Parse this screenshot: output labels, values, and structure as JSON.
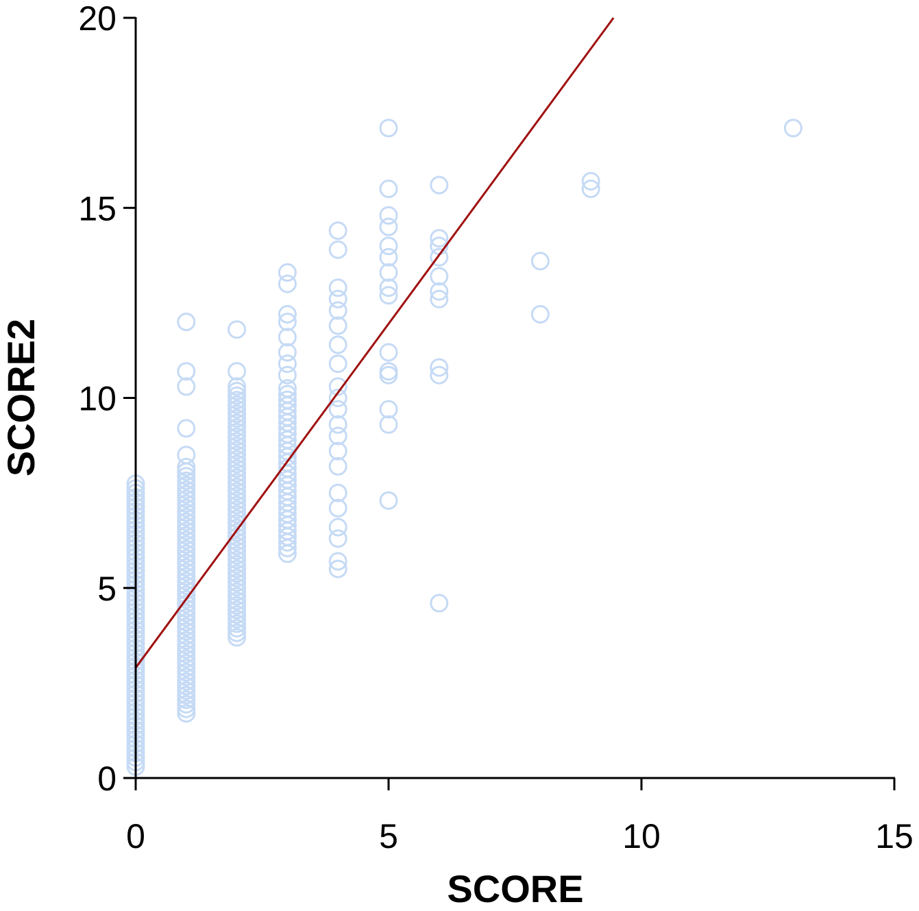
{
  "chart_data": {
    "type": "scatter",
    "title": "",
    "xlabel": "SCORE",
    "ylabel": "SCORE2",
    "xlim": [
      0,
      15
    ],
    "ylim": [
      0,
      20
    ],
    "x_ticks": [
      "0",
      "5",
      "10",
      "15"
    ],
    "y_ticks": [
      "0",
      "5",
      "10",
      "15",
      "20"
    ],
    "grid": false,
    "legend": "none",
    "colors": {
      "points": "#c5daf5",
      "fit_line": "#a01010",
      "axis": "#000000"
    },
    "fit_line": {
      "intercept": 2.9,
      "slope": 1.81
    },
    "point_columns": [
      {
        "x": 0,
        "ymin": 0.3,
        "ymax": 7.8,
        "step": 0.12
      },
      {
        "x": 1,
        "ymin": 1.7,
        "ymax": 8.2,
        "step": 0.12
      },
      {
        "x": 2,
        "ymin": 3.7,
        "ymax": 10.3,
        "step": 0.12
      },
      {
        "x": 3,
        "ymin": 5.9,
        "ymax": 10.3,
        "step": 0.15
      }
    ],
    "points": [
      [
        1,
        12.0
      ],
      [
        1,
        10.7
      ],
      [
        1,
        10.3
      ],
      [
        1,
        9.2
      ],
      [
        1,
        8.5
      ],
      [
        2,
        11.8
      ],
      [
        2,
        10.7
      ],
      [
        3,
        13.3
      ],
      [
        3,
        13.0
      ],
      [
        3,
        12.2
      ],
      [
        3,
        12.0
      ],
      [
        3,
        11.6
      ],
      [
        3,
        11.2
      ],
      [
        3,
        10.9
      ],
      [
        3,
        10.6
      ],
      [
        4,
        14.4
      ],
      [
        4,
        13.9
      ],
      [
        4,
        12.9
      ],
      [
        4,
        12.6
      ],
      [
        4,
        12.3
      ],
      [
        4,
        11.9
      ],
      [
        4,
        11.4
      ],
      [
        4,
        10.9
      ],
      [
        4,
        10.3
      ],
      [
        4,
        10.0
      ],
      [
        4,
        9.7
      ],
      [
        4,
        9.3
      ],
      [
        4,
        9.0
      ],
      [
        4,
        8.6
      ],
      [
        4,
        8.2
      ],
      [
        4,
        7.5
      ],
      [
        4,
        7.1
      ],
      [
        4,
        6.6
      ],
      [
        4,
        6.3
      ],
      [
        4,
        5.7
      ],
      [
        4,
        5.5
      ],
      [
        5,
        17.1
      ],
      [
        5,
        15.5
      ],
      [
        5,
        14.8
      ],
      [
        5,
        14.5
      ],
      [
        5,
        14.0
      ],
      [
        5,
        13.7
      ],
      [
        5,
        13.3
      ],
      [
        5,
        12.9
      ],
      [
        5,
        12.7
      ],
      [
        5,
        11.2
      ],
      [
        5,
        10.7
      ],
      [
        5,
        10.6
      ],
      [
        5,
        9.7
      ],
      [
        5,
        9.3
      ],
      [
        5,
        7.3
      ],
      [
        6,
        15.6
      ],
      [
        6,
        14.2
      ],
      [
        6,
        14.0
      ],
      [
        6,
        13.7
      ],
      [
        6,
        13.2
      ],
      [
        6,
        12.8
      ],
      [
        6,
        12.6
      ],
      [
        6,
        10.8
      ],
      [
        6,
        10.6
      ],
      [
        6,
        4.6
      ],
      [
        8,
        13.6
      ],
      [
        8,
        12.2
      ],
      [
        9,
        15.7
      ],
      [
        9,
        15.5
      ],
      [
        13,
        17.1
      ]
    ]
  }
}
